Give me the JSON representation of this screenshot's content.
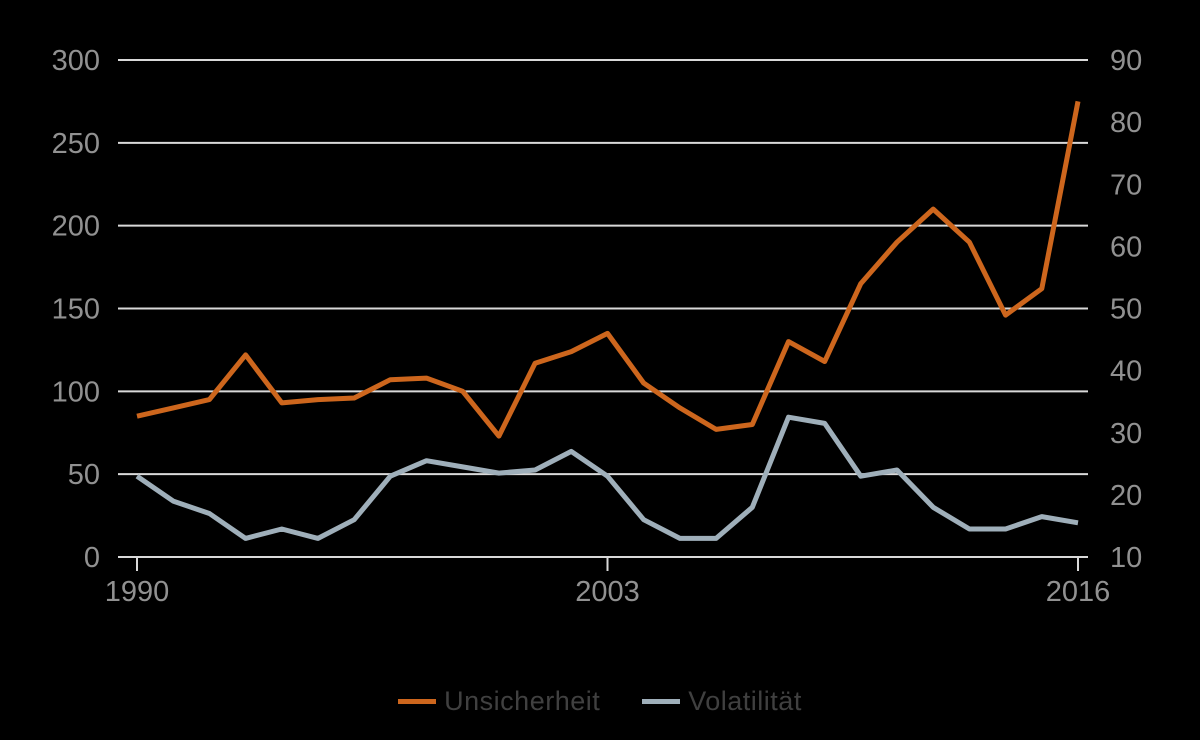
{
  "chart_data": {
    "type": "line",
    "title": "",
    "x": [
      1990,
      1991,
      1992,
      1993,
      1994,
      1995,
      1996,
      1997,
      1998,
      1999,
      2000,
      2001,
      2002,
      2003,
      2004,
      2005,
      2006,
      2007,
      2008,
      2009,
      2010,
      2011,
      2012,
      2013,
      2014,
      2015,
      2016
    ],
    "x_ticks": [
      {
        "label": "1990",
        "index": 0
      },
      {
        "label": "2003",
        "index": 13
      },
      {
        "label": "2016",
        "index": 26
      }
    ],
    "left_axis": {
      "min": 0,
      "max": 300,
      "ticks": [
        0,
        50,
        100,
        150,
        200,
        250,
        300
      ]
    },
    "right_axis": {
      "min": 10,
      "max": 90,
      "ticks": [
        10,
        20,
        30,
        40,
        50,
        60,
        70,
        80,
        90
      ]
    },
    "grid": "horizontal",
    "legend_position": "bottom",
    "series": [
      {
        "name": "Unsicherheit",
        "axis": "left",
        "color": "#cd661d",
        "values": [
          85,
          90,
          95,
          122,
          93,
          95,
          96,
          107,
          108,
          100,
          73,
          117,
          124,
          135,
          105,
          90,
          77,
          80,
          130,
          118,
          165,
          190,
          210,
          190,
          146,
          162,
          275
        ]
      },
      {
        "name": "Volatilität",
        "axis": "right",
        "color": "#9fafba",
        "values": [
          23,
          19,
          17,
          13,
          14.5,
          13,
          16,
          23,
          25.5,
          24.5,
          23.5,
          24,
          27,
          23,
          16,
          13,
          13,
          18,
          32.5,
          31.5,
          23,
          24,
          18,
          14.5,
          14.5,
          16.5,
          15.5
        ]
      }
    ],
    "style": {
      "background_color": "#000000",
      "grid_color": "#d9d9d9",
      "tick_label_color": "#919191",
      "legend_text_color": "#404040",
      "line_width": 5
    }
  }
}
